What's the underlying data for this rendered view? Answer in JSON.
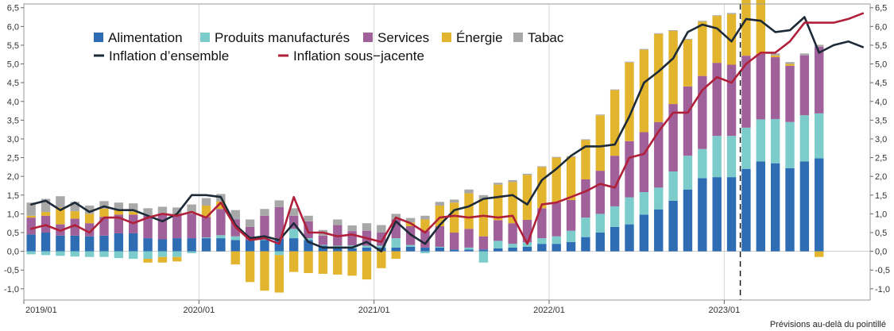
{
  "chart_data": {
    "type": "bar",
    "stacked": true,
    "note": "Prévisions au-delà du pointillé",
    "yticks": [
      "6,5",
      "6,0",
      "5,5",
      "5,0",
      "4,5",
      "4,0",
      "3,5",
      "3,0",
      "2,5",
      "2,0",
      "1,5",
      "1,0",
      "0,5",
      "0,0",
      "-0,5",
      "-1,0"
    ],
    "ylim": [
      -1.3,
      6.6
    ],
    "xtick_labels": [
      "2019/01",
      "2020/01",
      "2021/01",
      "2022/01",
      "2023/01"
    ],
    "xtick_indices": [
      0,
      12,
      24,
      36,
      48
    ],
    "forecast_start_index": 49,
    "grid": "vertical",
    "legend": [
      {
        "key": "food",
        "label": "Alimentation",
        "kind": "box",
        "color": "#2e6db4"
      },
      {
        "key": "goods",
        "label": "Produits manufacturés",
        "kind": "box",
        "color": "#7ccccc"
      },
      {
        "key": "services",
        "label": "Services",
        "kind": "box",
        "color": "#a0609a"
      },
      {
        "key": "energy",
        "label": "Énergie",
        "kind": "box",
        "color": "#e3b52e"
      },
      {
        "key": "tobacco",
        "label": "Tabac",
        "kind": "box",
        "color": "#a8a8a8"
      },
      {
        "key": "headline",
        "label": "Inflation d’ensemble",
        "kind": "line",
        "color": "#1d2a38"
      },
      {
        "key": "core",
        "label": "Inflation sous−jacente",
        "kind": "line",
        "color": "#b0203a"
      }
    ],
    "series": [
      {
        "name": "Alimentation",
        "key": "food",
        "color": "#2e6db4",
        "values": [
          0.45,
          0.5,
          0.42,
          0.42,
          0.4,
          0.42,
          0.48,
          0.48,
          0.35,
          0.32,
          0.35,
          0.35,
          0.35,
          0.35,
          0.3,
          0.3,
          0.3,
          0.33,
          0.35,
          0.3,
          0.15,
          0.1,
          0.08,
          0.1,
          0.1,
          0.1,
          0.12,
          0.1,
          0.1,
          0.05,
          0.05,
          0.05,
          0.08,
          0.1,
          0.12,
          0.2,
          0.2,
          0.25,
          0.38,
          0.5,
          0.65,
          0.72,
          0.98,
          1.12,
          1.35,
          1.65,
          1.95,
          1.98,
          1.98,
          2.2,
          2.4,
          2.35,
          2.22,
          2.4,
          2.48
        ]
      },
      {
        "name": "Produits manufacturés",
        "key": "goods",
        "color": "#7ccccc",
        "values": [
          -0.08,
          -0.1,
          -0.12,
          -0.14,
          -0.15,
          -0.15,
          -0.18,
          -0.2,
          -0.2,
          -0.15,
          -0.15,
          -0.05,
          0.02,
          0.08,
          0.1,
          0.0,
          0.1,
          -0.1,
          0.25,
          0.05,
          0.02,
          0.05,
          0.08,
          0.05,
          0.05,
          0.25,
          0.05,
          -0.05,
          0.02,
          0.0,
          0.05,
          -0.3,
          0.2,
          0.1,
          0.12,
          0.15,
          0.2,
          0.3,
          0.52,
          0.5,
          0.55,
          0.72,
          0.6,
          0.58,
          0.78,
          0.9,
          0.78,
          1.1,
          1.1,
          1.1,
          1.12,
          1.18,
          1.23,
          1.23,
          1.2
        ]
      },
      {
        "name": "Services",
        "key": "services",
        "color": "#a0609a",
        "values": [
          0.45,
          0.45,
          0.3,
          0.45,
          0.35,
          0.5,
          0.5,
          0.5,
          0.6,
          0.65,
          0.62,
          0.65,
          0.55,
          0.7,
          0.45,
          0.35,
          0.55,
          0.85,
          0.35,
          0.45,
          0.25,
          0.55,
          0.38,
          0.4,
          0.35,
          0.5,
          0.5,
          0.45,
          0.55,
          0.45,
          0.5,
          0.35,
          0.55,
          0.55,
          0.6,
          0.8,
          0.9,
          0.82,
          1.02,
          1.15,
          1.35,
          1.5,
          1.6,
          1.75,
          1.8,
          1.85,
          1.95,
          1.95,
          1.9,
          1.92,
          1.75,
          1.65,
          1.5,
          1.6,
          1.78
        ]
      },
      {
        "name": "Énergie",
        "key": "energy",
        "color": "#e3b52e",
        "values": [
          0.05,
          0.1,
          0.45,
          0.2,
          0.25,
          0.22,
          0.12,
          0.08,
          -0.1,
          -0.15,
          -0.12,
          0.0,
          0.3,
          0.2,
          -0.35,
          -0.82,
          -1.05,
          -1.0,
          -0.55,
          -0.58,
          -0.6,
          -0.62,
          -0.65,
          -0.75,
          -0.45,
          -0.2,
          0.1,
          0.3,
          0.55,
          0.8,
          0.95,
          1.0,
          0.95,
          1.1,
          1.2,
          1.1,
          1.2,
          1.15,
          1.05,
          1.48,
          1.75,
          2.1,
          2.2,
          2.35,
          1.95,
          1.25,
          1.45,
          1.25,
          1.35,
          1.55,
          1.45,
          0.05,
          0.05,
          0.0,
          -0.15
        ]
      },
      {
        "name": "Tabac",
        "key": "tobacco",
        "color": "#a8a8a8",
        "values": [
          0.35,
          0.35,
          0.3,
          0.25,
          0.22,
          0.2,
          0.2,
          0.22,
          0.2,
          0.22,
          0.2,
          0.25,
          0.2,
          0.2,
          0.25,
          0.2,
          0.18,
          0.18,
          0.2,
          0.15,
          0.15,
          0.15,
          0.15,
          0.2,
          0.2,
          0.15,
          0.12,
          0.1,
          0.1,
          0.08,
          0.1,
          0.1,
          0.05,
          0.05,
          0.03,
          0.02,
          0.02,
          0.02,
          0.02,
          0.02,
          0.02,
          0.02,
          0.02,
          0.02,
          0.02,
          0.02,
          0.02,
          0.02,
          0.03,
          0.03,
          0.03,
          0.05,
          0.05,
          0.05,
          0.05
        ]
      }
    ],
    "lines": [
      {
        "name": "Inflation d’ensemble",
        "key": "headline",
        "color": "#1d2a38",
        "values": [
          1.25,
          1.35,
          1.1,
          1.3,
          1.05,
          1.2,
          1.1,
          1.1,
          0.95,
          0.8,
          1.0,
          1.5,
          1.5,
          1.45,
          0.7,
          0.35,
          0.4,
          0.3,
          0.75,
          0.25,
          0.1,
          0.1,
          0.1,
          0.25,
          0.0,
          0.8,
          0.45,
          0.2,
          0.7,
          1.1,
          1.2,
          1.4,
          1.45,
          1.5,
          1.25,
          1.9,
          2.2,
          2.55,
          2.8,
          2.8,
          2.85,
          3.6,
          4.5,
          4.8,
          5.15,
          5.85,
          6.05,
          5.95,
          5.6,
          6.2,
          6.15,
          5.85,
          5.9,
          6.25,
          5.3,
          5.5,
          5.6,
          5.45
        ]
      },
      {
        "name": "Inflation sous−jacente",
        "key": "core",
        "color": "#b0203a",
        "values": [
          0.6,
          0.7,
          0.55,
          0.7,
          0.5,
          0.9,
          0.9,
          0.75,
          0.9,
          1.0,
          0.95,
          1.05,
          0.9,
          1.3,
          0.65,
          0.3,
          0.35,
          0.2,
          1.45,
          0.5,
          0.5,
          0.4,
          0.45,
          0.35,
          0.25,
          0.9,
          0.75,
          0.5,
          0.9,
          0.95,
          0.9,
          0.95,
          0.9,
          0.95,
          0.2,
          1.25,
          1.3,
          1.45,
          1.6,
          1.8,
          1.7,
          2.5,
          2.6,
          3.2,
          3.7,
          3.7,
          4.3,
          4.65,
          4.5,
          5.0,
          5.3,
          5.3,
          5.6,
          6.1,
          6.1,
          6.1,
          6.2,
          6.35
        ]
      }
    ]
  }
}
